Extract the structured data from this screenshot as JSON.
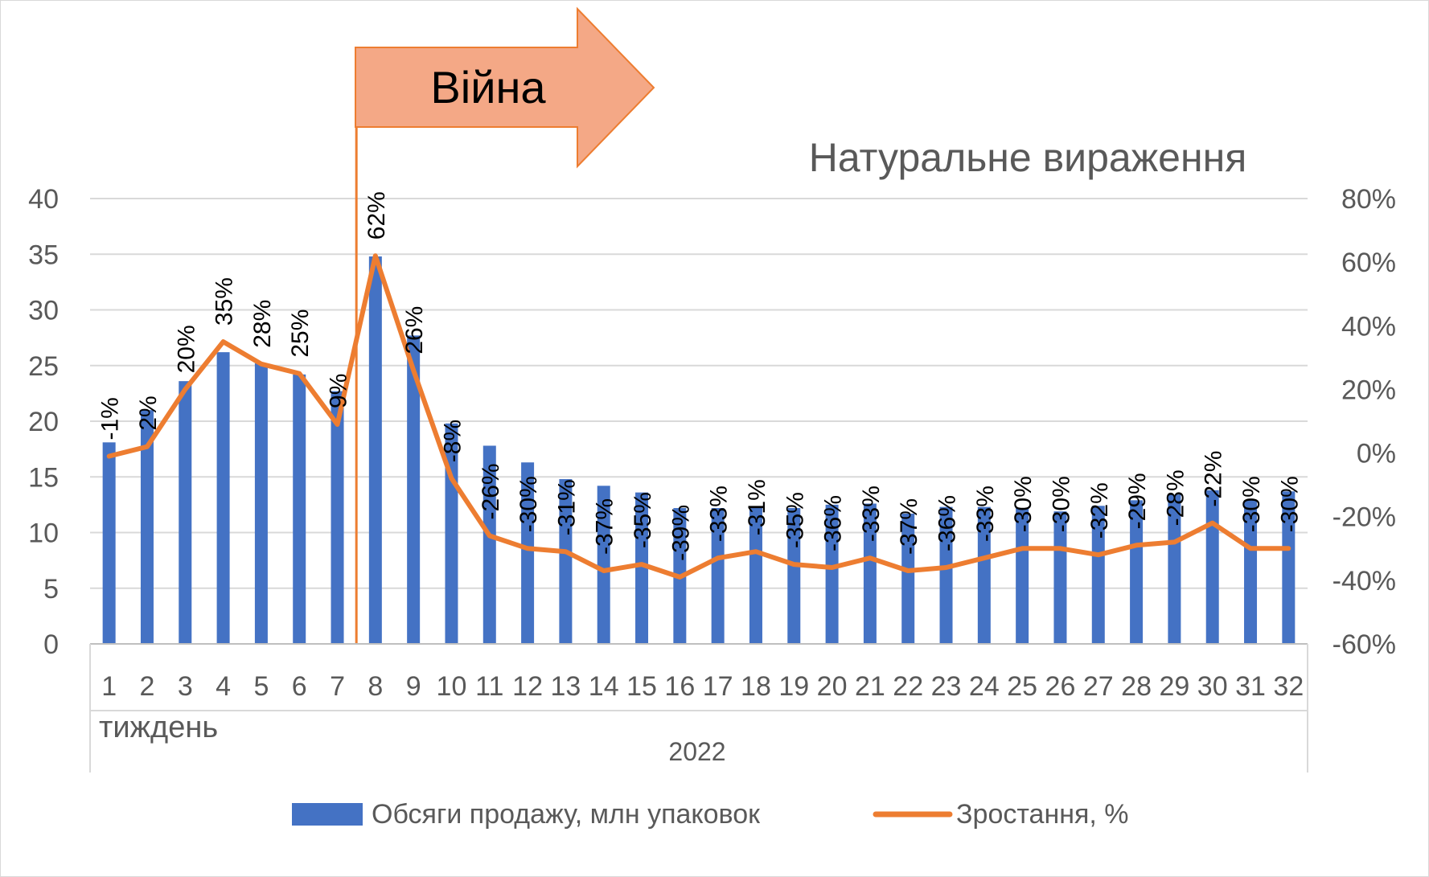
{
  "chart_data": {
    "type": "bar+line",
    "title": "Натуральне вираження",
    "annotation": "Війна",
    "categories": [
      "1",
      "2",
      "3",
      "4",
      "5",
      "6",
      "7",
      "8",
      "9",
      "10",
      "11",
      "12",
      "13",
      "14",
      "15",
      "16",
      "17",
      "18",
      "19",
      "20",
      "21",
      "22",
      "23",
      "24",
      "25",
      "26",
      "27",
      "28",
      "29",
      "30",
      "31",
      "32"
    ],
    "x_caption": "тиждень",
    "x_group_label": "2022",
    "war_week": 8,
    "series": [
      {
        "name": "Обсяги продажу, млн упаковок",
        "type": "bar",
        "axis": "left",
        "color": "#4472c4",
        "values": [
          18.1,
          21.0,
          23.6,
          26.2,
          25.2,
          24.2,
          22.7,
          34.8,
          27.7,
          19.8,
          17.8,
          16.3,
          14.8,
          14.2,
          13.6,
          12.2,
          12.2,
          12.3,
          12.2,
          12.5,
          12.6,
          11.7,
          12.3,
          12.3,
          12.2,
          11.9,
          12.4,
          12.9,
          13.4,
          13.8,
          12.9,
          13.7
        ]
      },
      {
        "name": "Зростання, %",
        "type": "line",
        "axis": "right",
        "color": "#ed7d31",
        "values": [
          -1,
          2,
          20,
          35,
          28,
          25,
          9,
          62,
          26,
          -8,
          -26,
          -30,
          -31,
          -37,
          -35,
          -39,
          -33,
          -31,
          -35,
          -36,
          -33,
          -37,
          -36,
          -33,
          -30,
          -30,
          -32,
          -29,
          -28,
          -22,
          -30,
          -30
        ],
        "labels": [
          "-1%",
          "2%",
          "20%",
          "35%",
          "28%",
          "25%",
          "9%",
          "62%",
          "26%",
          "-8%",
          "-26%",
          "-30%",
          "-31%",
          "-37%",
          "-35%",
          "-39%",
          "-33%",
          "-31%",
          "-35%",
          "-36%",
          "-33%",
          "-37%",
          "-36%",
          "-33%",
          "-30%",
          "-30%",
          "-32%",
          "-29%",
          "-28%",
          "-22%",
          "-30%",
          "-30%"
        ]
      }
    ],
    "y_left": {
      "min": 0,
      "max": 40,
      "ticks": [
        "0",
        "5",
        "10",
        "15",
        "20",
        "25",
        "30",
        "35",
        "40"
      ]
    },
    "y_right": {
      "min": -60,
      "max": 80,
      "ticks": [
        "-60%",
        "-40%",
        "-20%",
        "0%",
        "20%",
        "40%",
        "60%",
        "80%"
      ]
    },
    "grid": true,
    "legend_position": "bottom",
    "colors": {
      "bar": "#4472c4",
      "line": "#ed7d31",
      "arrow_fill": "#f4a886",
      "arrow_stroke": "#ed7d31",
      "grid": "#d9d9d9"
    }
  }
}
